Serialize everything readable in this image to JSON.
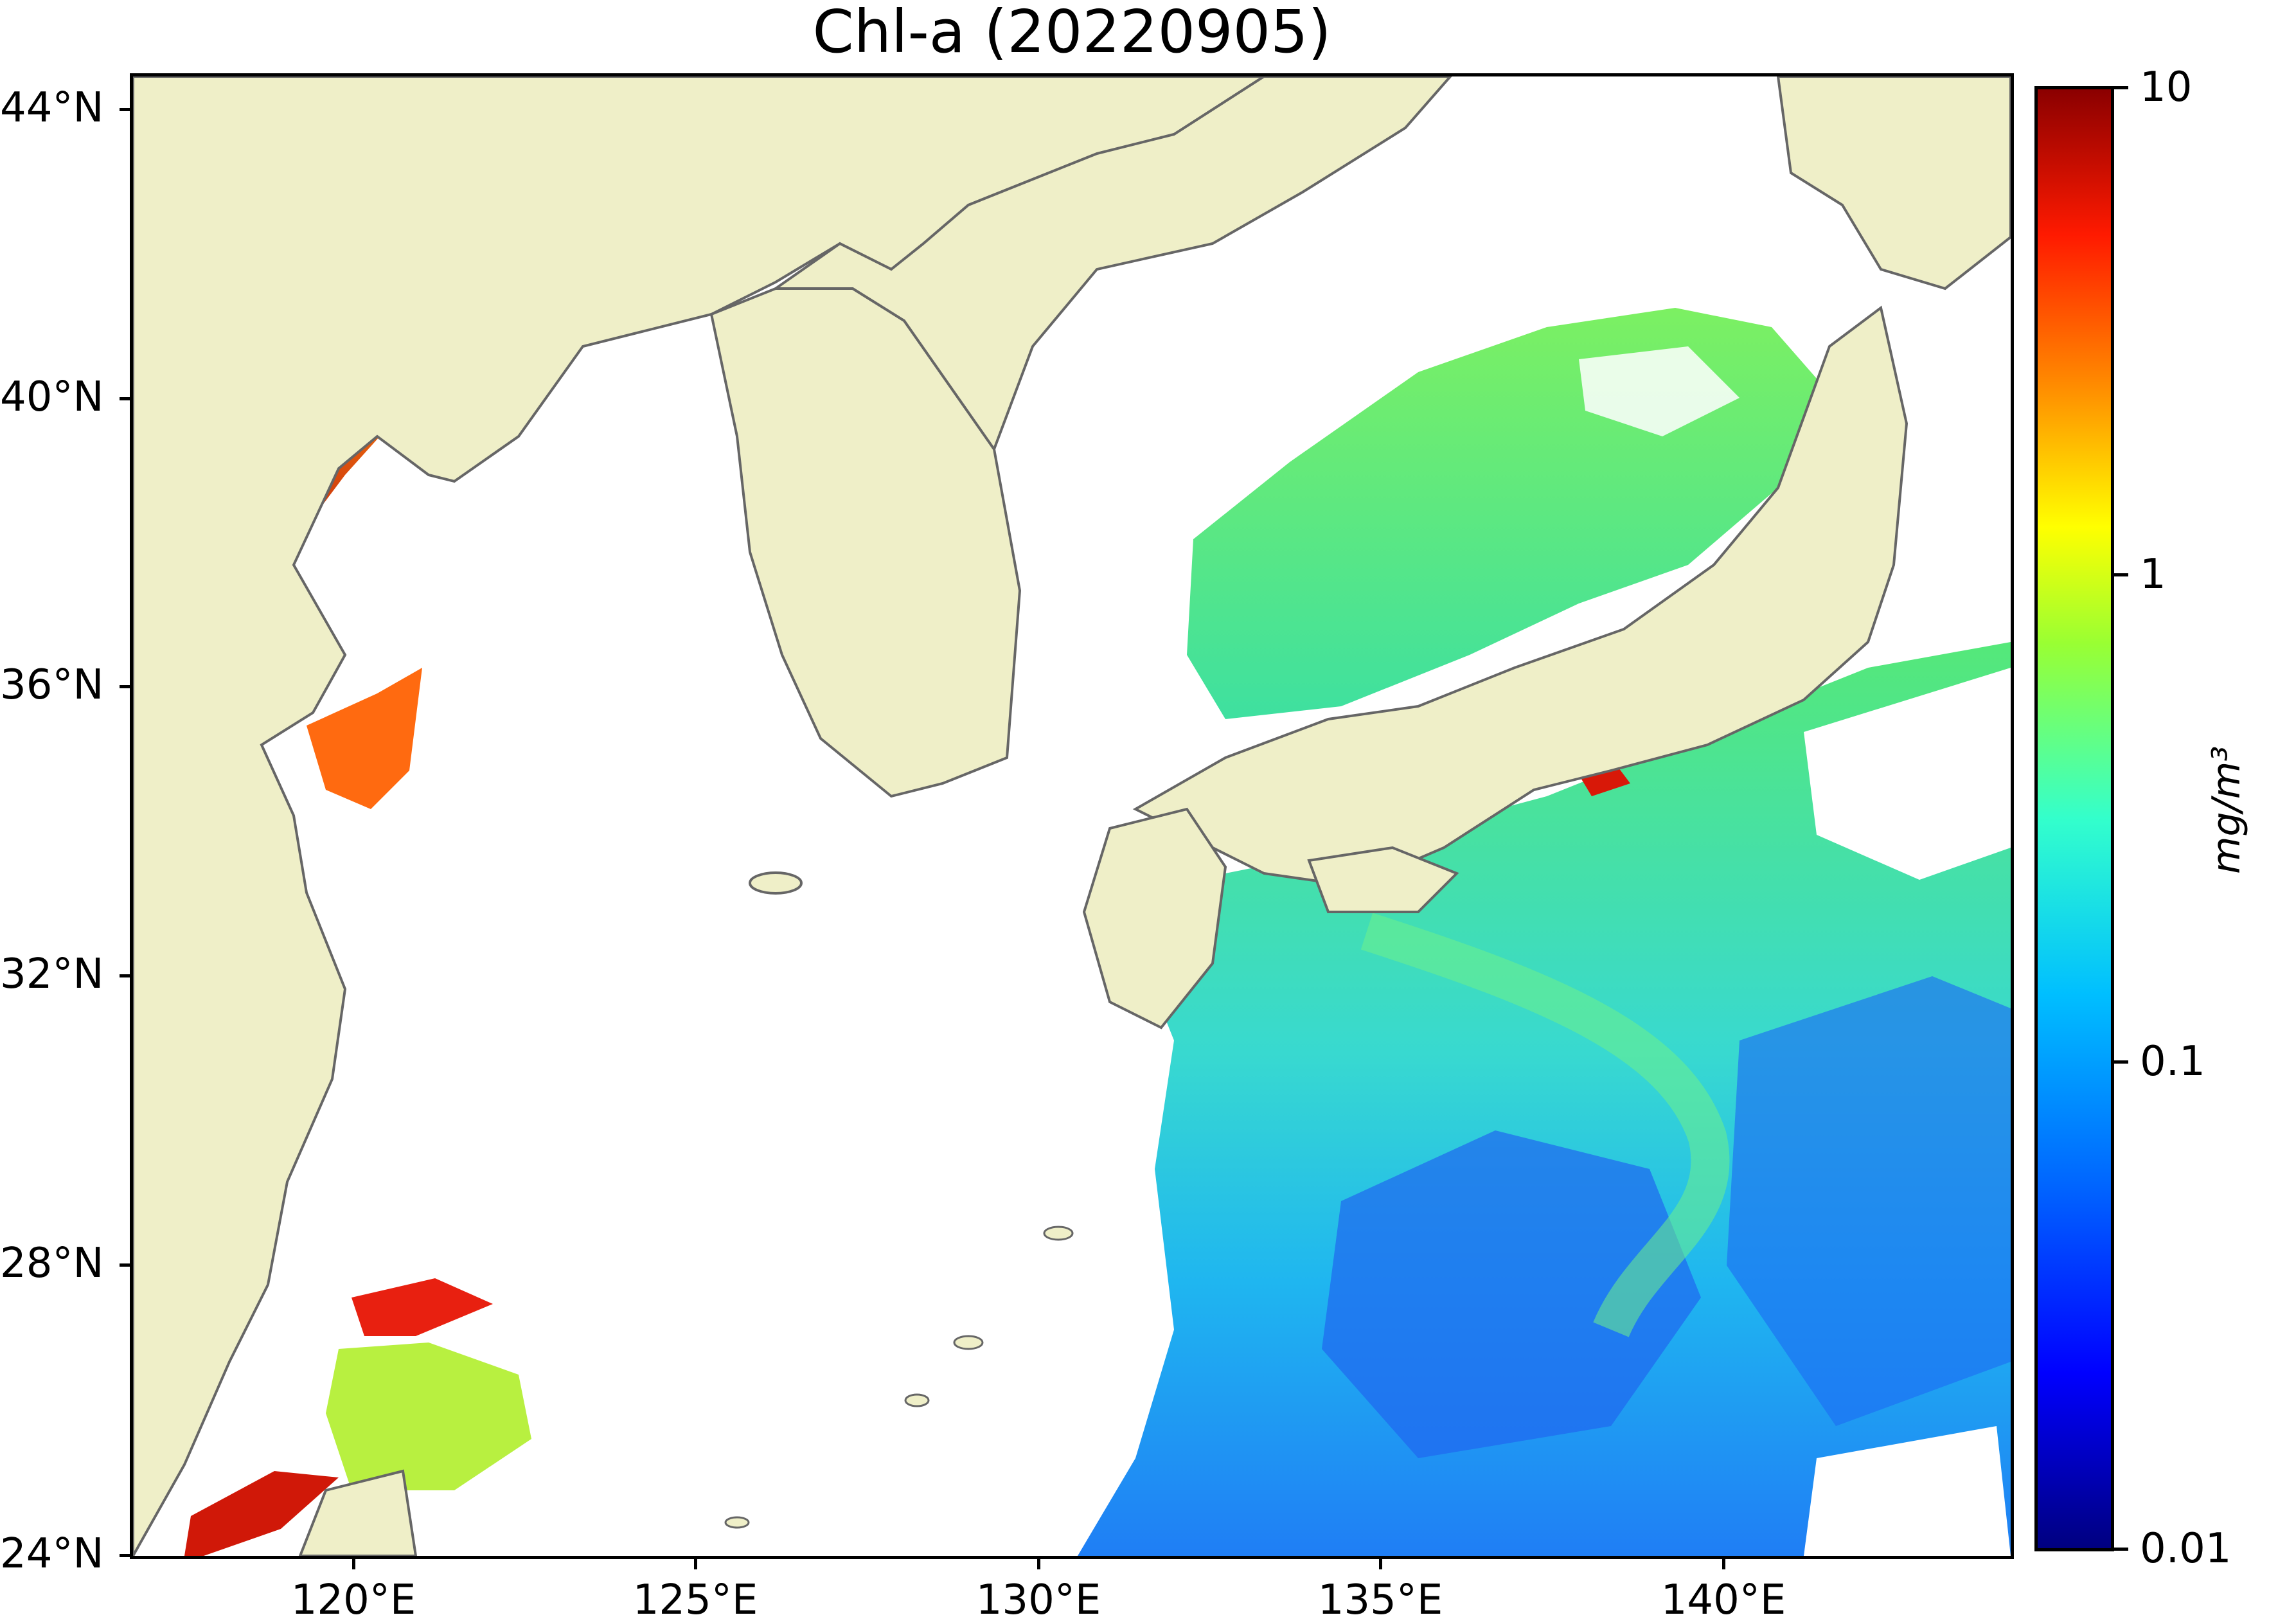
{
  "title": "Chl-a (20220905)",
  "lat_labels": [
    "44°N",
    "40°N",
    "36°N",
    "32°N",
    "28°N",
    "24°N"
  ],
  "lon_labels": [
    "120°E",
    "125°E",
    "130°E",
    "135°E",
    "140°E"
  ],
  "colorbar": {
    "labels": [
      "10",
      "1",
      "0.1",
      "0.01"
    ],
    "unit": "mg/m³",
    "scale": "log",
    "range": [
      0.01,
      10
    ]
  },
  "colors": {
    "land": "#efefc8",
    "coast": "#666666",
    "no_data": "#ffffff"
  }
}
